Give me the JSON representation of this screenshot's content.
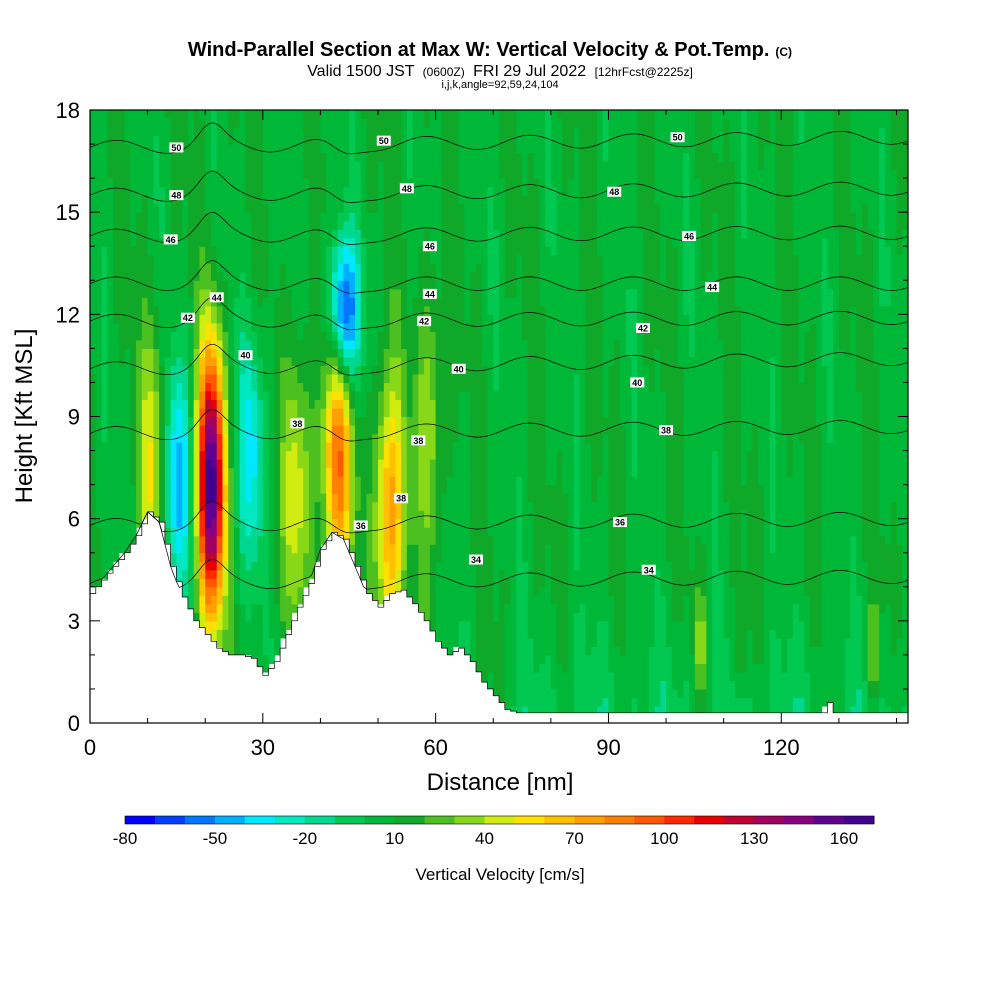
{
  "title": {
    "main": "Wind-Parallel Section at Max W: Vertical Velocity & Pot.Temp.",
    "main_suffix": "(C)",
    "valid_prefix": "Valid 1500 JST",
    "valid_z": "(0600Z)",
    "valid_date": "FRI 29 Jul 2022",
    "valid_fcst": "[12hrFcst@2225z]",
    "params": "i,j,k,angle=92,59,24,104"
  },
  "chart_data": {
    "type": "heatmap",
    "xlabel": "Distance [nm]",
    "ylabel": "Height [Kft MSL]",
    "xlim": [
      0,
      142
    ],
    "ylim": [
      0,
      18
    ],
    "x_ticks": [
      "0",
      "30",
      "60",
      "90",
      "120"
    ],
    "x_tick_values": [
      0,
      30,
      60,
      90,
      120
    ],
    "y_ticks": [
      "0",
      "3",
      "6",
      "9",
      "12",
      "15",
      "18"
    ],
    "y_tick_values": [
      0,
      3,
      6,
      9,
      12,
      15,
      18
    ],
    "colorbar": {
      "label": "Vertical Velocity [cm/s]",
      "tick_labels": [
        "-80",
        "-50",
        "-20",
        "10",
        "40",
        "70",
        "100",
        "130",
        "160"
      ],
      "min": -80,
      "max": 170,
      "step": 10,
      "colors": [
        "#0000ff",
        "#0040ff",
        "#0078ff",
        "#00b0ff",
        "#00e8ff",
        "#00e8c0",
        "#00d890",
        "#00c850",
        "#00b838",
        "#10a828",
        "#4cc020",
        "#88d818",
        "#d0ec10",
        "#ffe000",
        "#ffc000",
        "#ffa000",
        "#ff8000",
        "#ff5800",
        "#ff2800",
        "#e80000",
        "#c00030",
        "#a00060",
        "#880080",
        "#600090",
        "#400090"
      ]
    },
    "terrain_kft": [
      [
        0,
        3.8
      ],
      [
        2,
        4.2
      ],
      [
        4,
        4.6
      ],
      [
        6,
        5.0
      ],
      [
        8,
        5.5
      ],
      [
        10,
        6.2
      ],
      [
        12,
        5.9
      ],
      [
        14,
        4.6
      ],
      [
        16,
        3.7
      ],
      [
        18,
        3.0
      ],
      [
        20,
        2.6
      ],
      [
        22,
        2.2
      ],
      [
        24,
        2.0
      ],
      [
        26,
        2.0
      ],
      [
        28,
        1.9
      ],
      [
        30,
        1.4
      ],
      [
        32,
        1.8
      ],
      [
        34,
        2.6
      ],
      [
        36,
        3.4
      ],
      [
        38,
        4.1
      ],
      [
        40,
        5.1
      ],
      [
        42,
        5.6
      ],
      [
        44,
        5.4
      ],
      [
        46,
        4.6
      ],
      [
        48,
        3.8
      ],
      [
        50,
        3.4
      ],
      [
        52,
        3.8
      ],
      [
        54,
        3.9
      ],
      [
        56,
        3.5
      ],
      [
        58,
        3.0
      ],
      [
        60,
        2.4
      ],
      [
        62,
        2.0
      ],
      [
        64,
        2.2
      ],
      [
        66,
        1.8
      ],
      [
        68,
        1.2
      ],
      [
        70,
        0.8
      ],
      [
        72,
        0.4
      ],
      [
        74,
        0.3
      ],
      [
        80,
        0.3
      ],
      [
        100,
        0.3
      ],
      [
        120,
        0.3
      ],
      [
        127,
        0.3
      ],
      [
        128,
        0.6
      ],
      [
        129,
        0.3
      ],
      [
        142,
        0.3
      ]
    ],
    "updrafts": [
      {
        "x": 21,
        "z": 7.0,
        "peak_cms": 170
      },
      {
        "x": 43,
        "z": 8.0,
        "peak_cms": 90
      },
      {
        "x": 52,
        "z": 6.0,
        "peak_cms": 80
      },
      {
        "x": 11,
        "z": 7.5,
        "peak_cms": 50
      },
      {
        "x": 36,
        "z": 7.0,
        "peak_cms": 50
      },
      {
        "x": 59,
        "z": 9.0,
        "peak_cms": 40
      }
    ],
    "downdrafts": [
      {
        "x": 44,
        "z": 12.0,
        "min_cms": -80
      },
      {
        "x": 15,
        "z": 7.0,
        "min_cms": -45
      },
      {
        "x": 28,
        "z": 8.0,
        "min_cms": -30
      }
    ],
    "isentropes": [
      {
        "label": "34",
        "z_left": 4.1,
        "z_right": 4.3
      },
      {
        "label": "36",
        "z_left": 5.8,
        "z_right": 6.0
      },
      {
        "label": "38",
        "z_left": 8.5,
        "z_right": 8.7
      },
      {
        "label": "40",
        "z_left": 10.4,
        "z_right": 10.7
      },
      {
        "label": "42",
        "z_left": 11.8,
        "z_right": 11.9
      },
      {
        "label": "44",
        "z_left": 12.9,
        "z_right": 12.9
      },
      {
        "label": "46",
        "z_left": 14.3,
        "z_right": 14.4
      },
      {
        "label": "48",
        "z_left": 15.5,
        "z_right": 15.7
      },
      {
        "label": "50",
        "z_left": 16.9,
        "z_right": 17.2
      }
    ],
    "contour_labels": [
      {
        "text": "50",
        "x": 15,
        "y": 16.9
      },
      {
        "text": "50",
        "x": 51,
        "y": 17.1
      },
      {
        "text": "50",
        "x": 102,
        "y": 17.2
      },
      {
        "text": "48",
        "x": 15,
        "y": 15.5
      },
      {
        "text": "48",
        "x": 55,
        "y": 15.7
      },
      {
        "text": "48",
        "x": 91,
        "y": 15.6
      },
      {
        "text": "46",
        "x": 14,
        "y": 14.2
      },
      {
        "text": "46",
        "x": 59,
        "y": 14.0
      },
      {
        "text": "46",
        "x": 104,
        "y": 14.3
      },
      {
        "text": "44",
        "x": 22,
        "y": 12.5
      },
      {
        "text": "44",
        "x": 59,
        "y": 12.6
      },
      {
        "text": "44",
        "x": 108,
        "y": 12.8
      },
      {
        "text": "42",
        "x": 17,
        "y": 11.9
      },
      {
        "text": "42",
        "x": 58,
        "y": 11.8
      },
      {
        "text": "42",
        "x": 96,
        "y": 11.6
      },
      {
        "text": "40",
        "x": 27,
        "y": 10.8
      },
      {
        "text": "40",
        "x": 64,
        "y": 10.4
      },
      {
        "text": "40",
        "x": 95,
        "y": 10.0
      },
      {
        "text": "38",
        "x": 36,
        "y": 8.8
      },
      {
        "text": "38",
        "x": 57,
        "y": 8.3
      },
      {
        "text": "38",
        "x": 100,
        "y": 8.6
      },
      {
        "text": "38",
        "x": 54,
        "y": 6.6
      },
      {
        "text": "36",
        "x": 47,
        "y": 5.8
      },
      {
        "text": "36",
        "x": 92,
        "y": 5.9
      },
      {
        "text": "34",
        "x": 67,
        "y": 4.8
      },
      {
        "text": "34",
        "x": 97,
        "y": 4.5
      }
    ]
  }
}
